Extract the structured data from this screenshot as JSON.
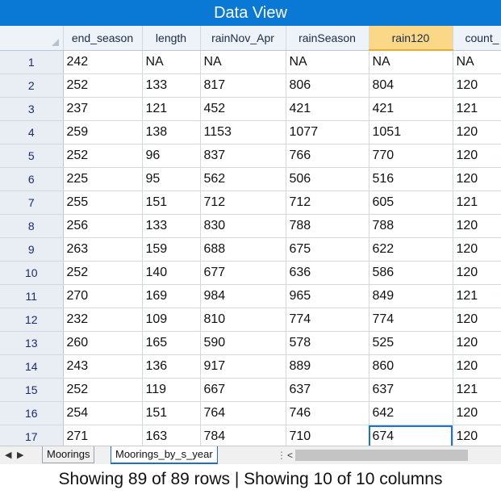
{
  "window": {
    "title": "Data View"
  },
  "grid": {
    "columns": [
      "end_season",
      "length",
      "rainNov_Apr",
      "rainSeason",
      "rain120",
      "count_"
    ],
    "selected_column": "rain120",
    "rows": [
      {
        "n": "1",
        "cells": [
          "242",
          "NA",
          "NA",
          "NA",
          "NA",
          "NA"
        ]
      },
      {
        "n": "2",
        "cells": [
          "252",
          "133",
          "817",
          "806",
          "804",
          "120"
        ]
      },
      {
        "n": "3",
        "cells": [
          "237",
          "121",
          "452",
          "421",
          "421",
          "121"
        ]
      },
      {
        "n": "4",
        "cells": [
          "259",
          "138",
          "1153",
          "1077",
          "1051",
          "120"
        ]
      },
      {
        "n": "5",
        "cells": [
          "252",
          "96",
          "837",
          "766",
          "770",
          "120"
        ]
      },
      {
        "n": "6",
        "cells": [
          "225",
          "95",
          "562",
          "506",
          "516",
          "120"
        ]
      },
      {
        "n": "7",
        "cells": [
          "255",
          "151",
          "712",
          "712",
          "605",
          "121"
        ]
      },
      {
        "n": "8",
        "cells": [
          "256",
          "133",
          "830",
          "788",
          "788",
          "120"
        ]
      },
      {
        "n": "9",
        "cells": [
          "263",
          "159",
          "688",
          "675",
          "622",
          "120"
        ]
      },
      {
        "n": "10",
        "cells": [
          "252",
          "140",
          "677",
          "636",
          "586",
          "120"
        ]
      },
      {
        "n": "11",
        "cells": [
          "270",
          "169",
          "984",
          "965",
          "849",
          "121"
        ]
      },
      {
        "n": "12",
        "cells": [
          "232",
          "109",
          "810",
          "774",
          "774",
          "120"
        ]
      },
      {
        "n": "13",
        "cells": [
          "260",
          "165",
          "590",
          "578",
          "525",
          "120"
        ]
      },
      {
        "n": "14",
        "cells": [
          "243",
          "136",
          "917",
          "889",
          "860",
          "120"
        ]
      },
      {
        "n": "15",
        "cells": [
          "252",
          "119",
          "667",
          "637",
          "637",
          "121"
        ]
      },
      {
        "n": "16",
        "cells": [
          "254",
          "151",
          "764",
          "746",
          "642",
          "120"
        ]
      },
      {
        "n": "17",
        "cells": [
          "271",
          "163",
          "784",
          "710",
          "674",
          "120"
        ]
      }
    ]
  },
  "sheet_tabs": [
    {
      "label": "Moorings",
      "active": false
    },
    {
      "label": "Moorings_by_s_year",
      "active": true
    }
  ],
  "nav": {
    "prev": "◀",
    "next": "▶",
    "splitter": "⋮",
    "scroll_left": "<"
  },
  "status": {
    "text": "Showing 89 of 89 rows | Showing 10 of 10 columns"
  },
  "colors": {
    "titlebar": "#0a79d6",
    "selected_header": "#fbd888",
    "active_cell_border": "#1a73d1",
    "active_tab_border": "#1f6fc4"
  }
}
